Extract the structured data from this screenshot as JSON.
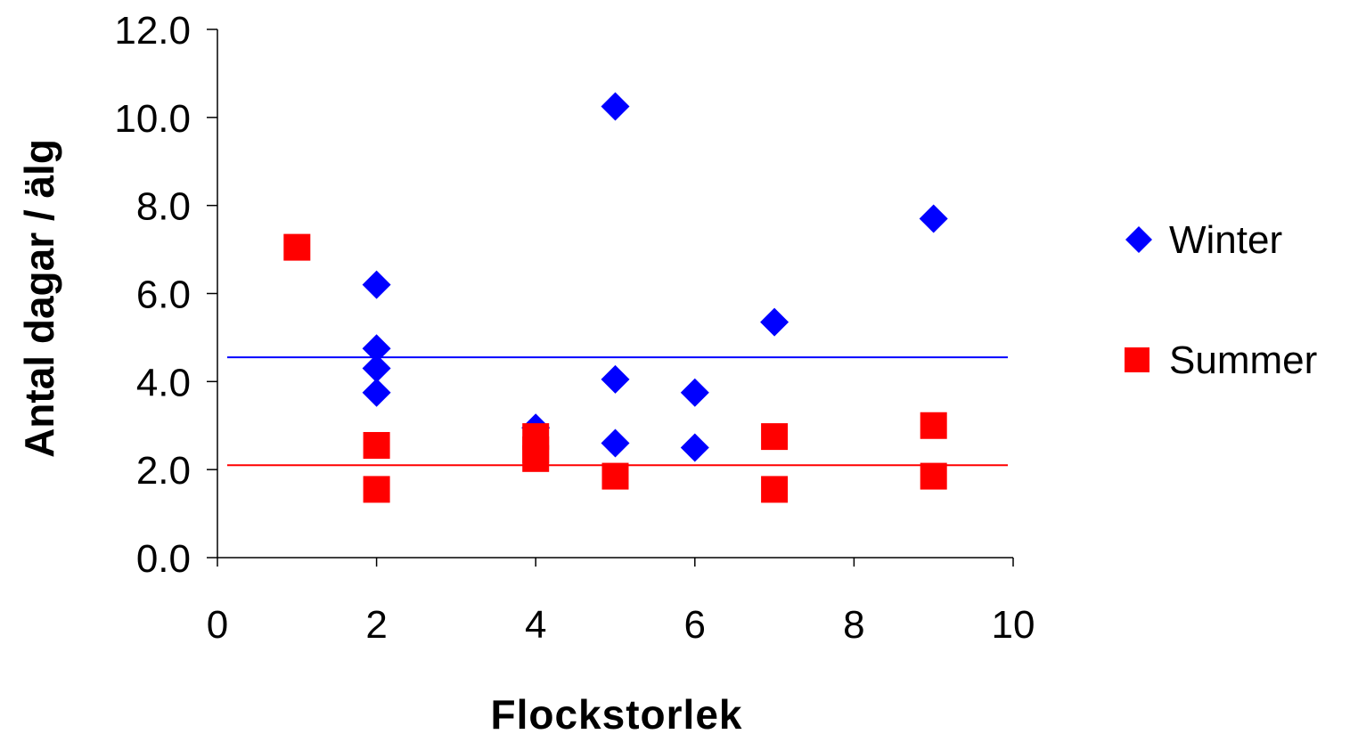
{
  "chart_data": {
    "type": "scatter",
    "xlabel": "Flockstorlek",
    "ylabel": "Antal dagar / älg",
    "xlim": [
      0,
      10
    ],
    "ylim": [
      0,
      12
    ],
    "x_ticks": [
      0,
      2,
      4,
      6,
      8,
      10
    ],
    "y_ticks": [
      0,
      2,
      4,
      6,
      8,
      10,
      12
    ],
    "x_tick_labels": [
      "0",
      "2",
      "4",
      "6",
      "8",
      "10"
    ],
    "y_tick_labels": [
      "0.0",
      "2.0",
      "4.0",
      "6.0",
      "8.0",
      "10.0",
      "12.0"
    ],
    "grid": false,
    "legend_position": "right",
    "series": [
      {
        "name": "Winter",
        "marker": "diamond",
        "color": "#0000ff",
        "mean_line": 4.55,
        "points": [
          {
            "x": 2,
            "y": 6.2
          },
          {
            "x": 2,
            "y": 4.75
          },
          {
            "x": 2,
            "y": 4.3
          },
          {
            "x": 2,
            "y": 3.75
          },
          {
            "x": 4,
            "y": 2.95
          },
          {
            "x": 5,
            "y": 10.25
          },
          {
            "x": 5,
            "y": 4.05
          },
          {
            "x": 5,
            "y": 2.6
          },
          {
            "x": 6,
            "y": 3.75
          },
          {
            "x": 6,
            "y": 2.5
          },
          {
            "x": 7,
            "y": 5.35
          },
          {
            "x": 9,
            "y": 7.7
          }
        ]
      },
      {
        "name": "Summer",
        "marker": "square",
        "color": "#ff0000",
        "mean_line": 2.1,
        "points": [
          {
            "x": 1,
            "y": 7.05
          },
          {
            "x": 2,
            "y": 2.55
          },
          {
            "x": 2,
            "y": 1.55
          },
          {
            "x": 4,
            "y": 2.75
          },
          {
            "x": 4,
            "y": 2.45
          },
          {
            "x": 4,
            "y": 2.25
          },
          {
            "x": 5,
            "y": 1.85
          },
          {
            "x": 7,
            "y": 2.75
          },
          {
            "x": 7,
            "y": 1.55
          },
          {
            "x": 9,
            "y": 3.0
          },
          {
            "x": 9,
            "y": 1.85
          }
        ]
      }
    ]
  }
}
